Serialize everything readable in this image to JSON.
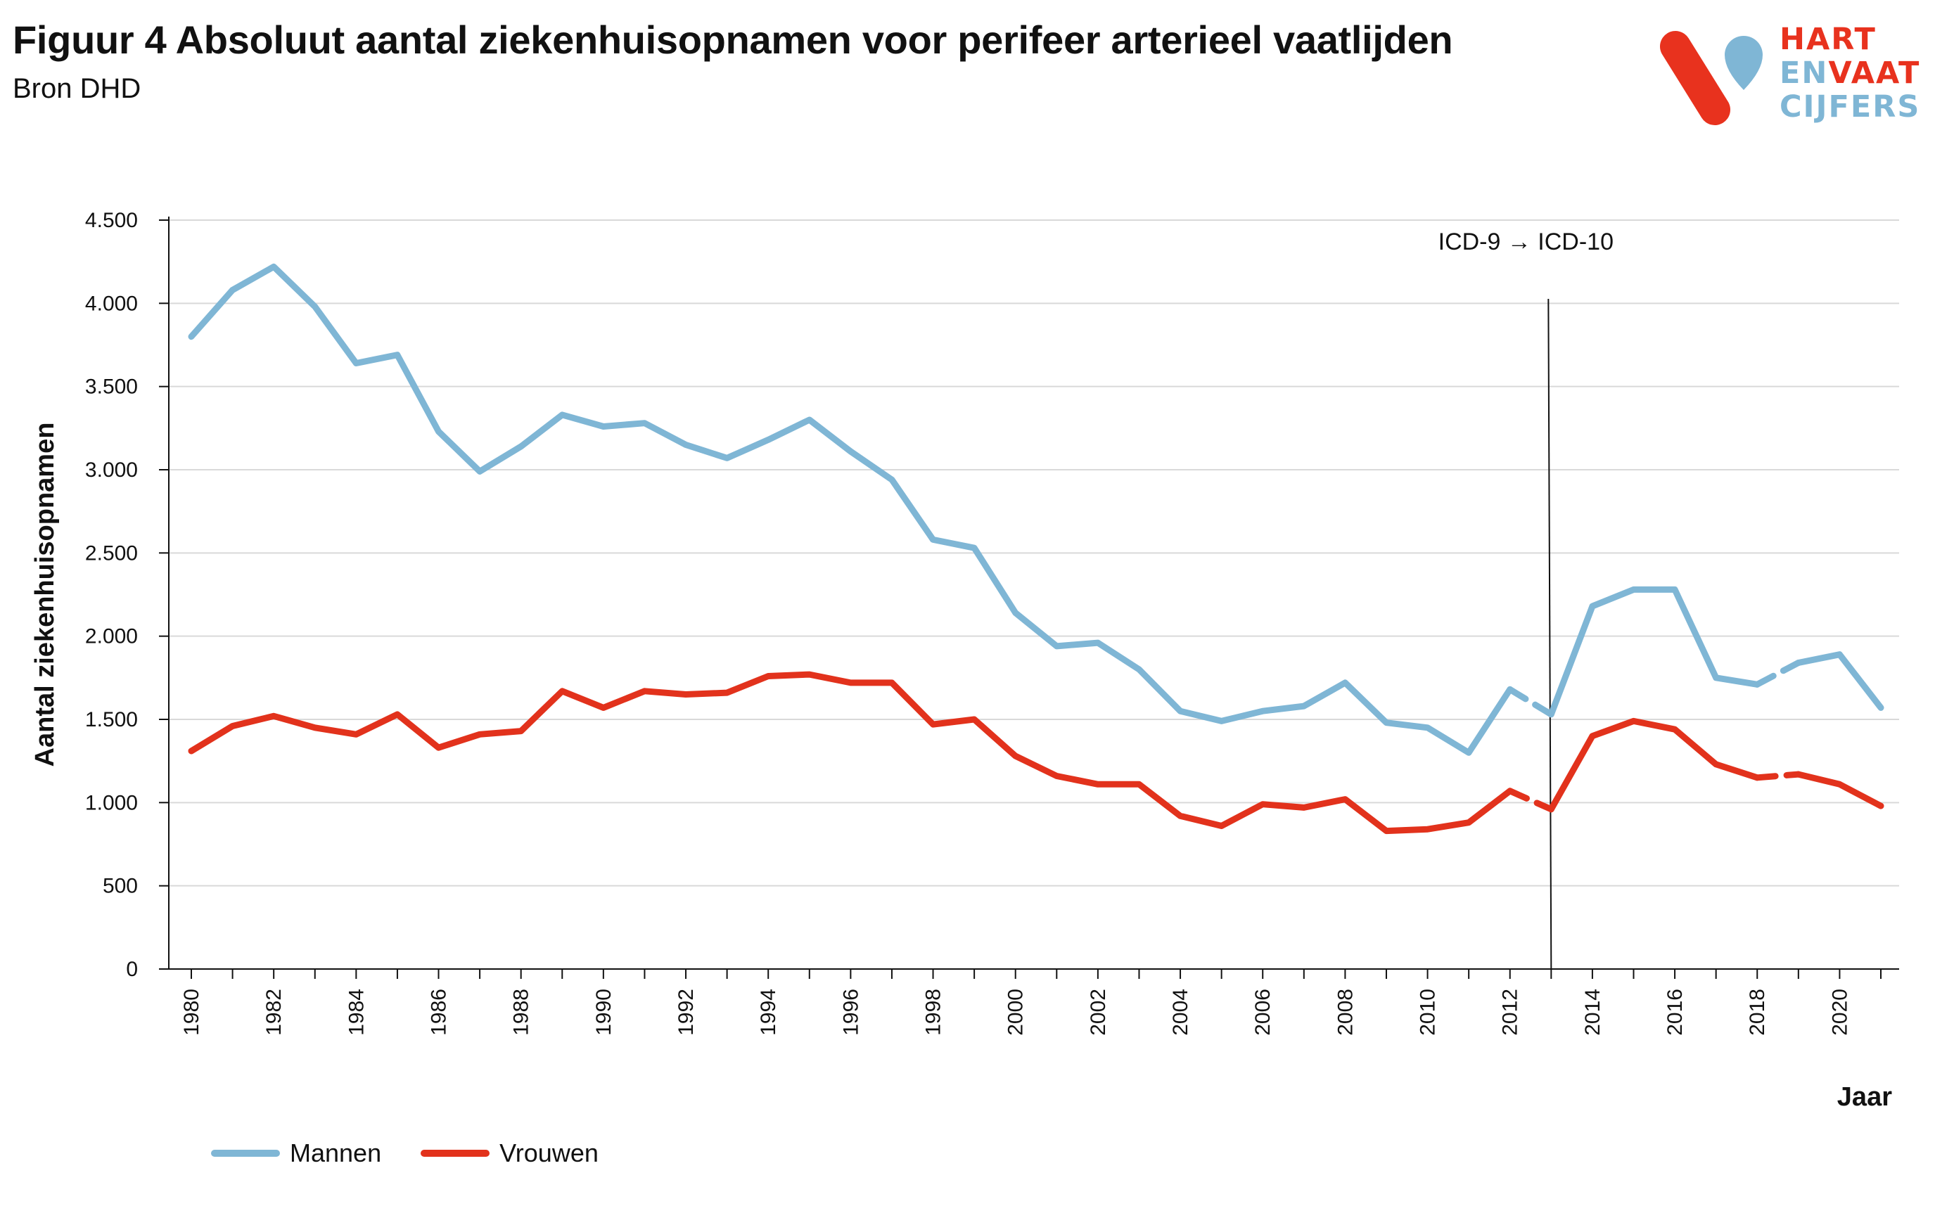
{
  "header": {
    "title": "Figuur 4 Absoluut aantal ziekenhuisopnamen voor perifeer arterieel vaatlijden",
    "subtitle": "Bron DHD"
  },
  "logo": {
    "line1": "HART",
    "line2a": "EN",
    "line2b": "VAAT",
    "line3": "CIJFERS",
    "colors": {
      "red": "#e8321e",
      "blue": "#7fb6d5"
    }
  },
  "chart_data": {
    "type": "line",
    "xlabel": "Jaar",
    "ylabel": "Aantal ziekenhuisopnamen",
    "ylim": [
      0,
      4500
    ],
    "yticks": [
      0,
      500,
      1000,
      1500,
      2000,
      2500,
      3000,
      3500,
      4000,
      4500
    ],
    "ytick_labels": [
      "0",
      "500",
      "1.000",
      "1.500",
      "2.000",
      "2.500",
      "3.000",
      "3.500",
      "4.000",
      "4.500"
    ],
    "xlim": [
      1980,
      2021
    ],
    "xtick_labels": [
      "1980",
      "1982",
      "1984",
      "1986",
      "1988",
      "1990",
      "1992",
      "1994",
      "1996",
      "1998",
      "2000",
      "2002",
      "2004",
      "2006",
      "2008",
      "2010",
      "2012",
      "2014",
      "2016",
      "2018",
      "2020"
    ],
    "grid": true,
    "legend_position": "bottom-left",
    "annotation": {
      "text": "ICD-9 → ICD-10",
      "x": 2013
    },
    "x": [
      1980,
      1981,
      1982,
      1983,
      1984,
      1985,
      1986,
      1987,
      1988,
      1989,
      1990,
      1991,
      1992,
      1993,
      1994,
      1995,
      1996,
      1997,
      1998,
      1999,
      2000,
      2001,
      2002,
      2003,
      2004,
      2005,
      2006,
      2007,
      2008,
      2009,
      2010,
      2011,
      2012,
      2013,
      2014,
      2015,
      2016,
      2017,
      2018,
      2019,
      2020,
      2021
    ],
    "series": [
      {
        "name": "Mannen",
        "color": "#7fb6d5",
        "values": [
          3800,
          4080,
          4220,
          3980,
          3640,
          3690,
          3230,
          2990,
          3140,
          3330,
          3260,
          3280,
          3150,
          3070,
          3180,
          3300,
          3110,
          2940,
          2580,
          2530,
          2140,
          1940,
          1960,
          1800,
          1550,
          1490,
          1550,
          1580,
          1720,
          1480,
          1450,
          1300,
          1680,
          1530,
          2180,
          2280,
          2280,
          1750,
          1710,
          1840,
          1890,
          1570
        ],
        "dashed_segments": [
          [
            2012,
            2013
          ],
          [
            2018,
            2019
          ]
        ]
      },
      {
        "name": "Vrouwen",
        "color": "#e2321c",
        "values": [
          1310,
          1460,
          1520,
          1450,
          1410,
          1530,
          1330,
          1410,
          1430,
          1670,
          1570,
          1670,
          1650,
          1660,
          1760,
          1770,
          1720,
          1720,
          1470,
          1500,
          1280,
          1160,
          1110,
          1110,
          920,
          860,
          990,
          970,
          1020,
          830,
          840,
          880,
          1070,
          960,
          1400,
          1490,
          1440,
          1230,
          1150,
          1170,
          1110,
          980
        ],
        "dashed_segments": [
          [
            2012,
            2013
          ],
          [
            2018,
            2019
          ]
        ]
      }
    ]
  }
}
